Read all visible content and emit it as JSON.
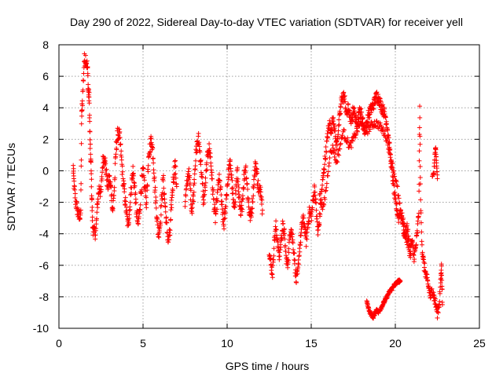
{
  "chart_data": {
    "type": "scatter",
    "title": "Day 290 of 2022, Sidereal Day-to-day VTEC variation (SDTVAR) for receiver yell",
    "xlabel": "GPS time / hours",
    "ylabel": "SDTVAR / TECUs",
    "xlim": [
      0,
      25
    ],
    "ylim": [
      -10,
      8
    ],
    "xticks": [
      0,
      5,
      10,
      15,
      20,
      25
    ],
    "yticks": [
      -10,
      -8,
      -6,
      -4,
      -2,
      0,
      2,
      4,
      6,
      8
    ],
    "grid": true,
    "marker": "+",
    "color": "#ff0000",
    "series": [
      {
        "name": "SDTVAR",
        "trace": [
          [
            0.85,
            0.2
          ],
          [
            0.9,
            -1.0
          ],
          [
            1.0,
            -2.0
          ],
          [
            1.1,
            -2.5
          ],
          [
            1.2,
            -3.0
          ],
          [
            1.3,
            -2.5
          ],
          [
            1.35,
            3.5
          ],
          [
            1.4,
            4.5
          ],
          [
            1.5,
            7.0
          ],
          [
            1.6,
            7.2
          ],
          [
            1.7,
            6.5
          ],
          [
            1.75,
            5.0
          ],
          [
            1.8,
            4.6
          ],
          [
            1.85,
            1.8
          ],
          [
            1.9,
            0.5
          ],
          [
            1.95,
            -1.5
          ],
          [
            2.0,
            -3.5
          ],
          [
            2.1,
            -4.0
          ],
          [
            2.2,
            -3.8
          ],
          [
            2.3,
            -2.0
          ],
          [
            2.4,
            -1.0
          ],
          [
            2.5,
            -1.5
          ],
          [
            2.6,
            0.5
          ],
          [
            2.7,
            1.0
          ],
          [
            2.8,
            0.0
          ],
          [
            2.9,
            -1.0
          ],
          [
            3.0,
            -0.5
          ],
          [
            3.1,
            -1.2
          ],
          [
            3.2,
            -2.5
          ],
          [
            3.3,
            -1.0
          ],
          [
            3.4,
            1.5
          ],
          [
            3.5,
            2.4
          ],
          [
            3.6,
            2.2
          ],
          [
            3.7,
            1.0
          ],
          [
            3.8,
            -0.5
          ],
          [
            3.9,
            -1.5
          ],
          [
            4.0,
            -2.5
          ],
          [
            4.1,
            -3.5
          ],
          [
            4.2,
            -2.5
          ],
          [
            4.3,
            -1.0
          ],
          [
            4.4,
            0.0
          ],
          [
            4.5,
            -1.0
          ],
          [
            4.6,
            -2.5
          ],
          [
            4.7,
            -3.5
          ],
          [
            4.8,
            -2.5
          ],
          [
            4.9,
            -1.0
          ],
          [
            5.0,
            0.0
          ],
          [
            5.1,
            -1.0
          ],
          [
            5.2,
            -2.0
          ],
          [
            5.3,
            0.0
          ],
          [
            5.4,
            1.5
          ],
          [
            5.5,
            2.0
          ],
          [
            5.6,
            1.0
          ],
          [
            5.7,
            -1.0
          ],
          [
            5.8,
            -2.5
          ],
          [
            5.9,
            -4.0
          ],
          [
            6.0,
            -3.5
          ],
          [
            6.1,
            -2.0
          ],
          [
            6.2,
            -0.5
          ],
          [
            6.3,
            -2.0
          ],
          [
            6.4,
            -3.5
          ],
          [
            6.5,
            -4.5
          ],
          [
            6.6,
            -4.0
          ],
          [
            6.7,
            -2.0
          ],
          [
            6.8,
            -0.5
          ],
          [
            6.9,
            0.5
          ],
          [
            7.0,
            -1.0
          ]
        ],
        "trace2": [
          [
            7.5,
            -2.0
          ],
          [
            7.6,
            -1.0
          ],
          [
            7.7,
            0.0
          ],
          [
            7.8,
            -1.0
          ],
          [
            7.9,
            -2.5
          ],
          [
            8.0,
            -1.5
          ],
          [
            8.1,
            0.5
          ],
          [
            8.2,
            1.5
          ],
          [
            8.3,
            2.0
          ],
          [
            8.4,
            1.0
          ],
          [
            8.5,
            -0.5
          ],
          [
            8.6,
            -2.0
          ],
          [
            8.7,
            -1.0
          ],
          [
            8.8,
            0.5
          ],
          [
            8.9,
            1.5
          ],
          [
            9.0,
            1.0
          ],
          [
            9.1,
            -0.5
          ],
          [
            9.2,
            -2.0
          ],
          [
            9.3,
            -3.0
          ],
          [
            9.4,
            -2.0
          ],
          [
            9.5,
            -0.5
          ],
          [
            9.6,
            -1.0
          ],
          [
            9.7,
            -2.5
          ],
          [
            9.8,
            -3.5
          ],
          [
            9.9,
            -2.5
          ],
          [
            10.0,
            -1.0
          ],
          [
            10.1,
            0.0
          ],
          [
            10.2,
            0.5
          ],
          [
            10.3,
            -1.0
          ],
          [
            10.4,
            -2.5
          ],
          [
            10.5,
            -1.5
          ],
          [
            10.6,
            0.0
          ],
          [
            10.7,
            -1.5
          ],
          [
            10.8,
            -3.0
          ],
          [
            10.9,
            -2.0
          ],
          [
            11.0,
            -0.5
          ],
          [
            11.1,
            0.3
          ],
          [
            11.2,
            -1.0
          ],
          [
            11.3,
            -2.5
          ],
          [
            11.4,
            -3.0
          ],
          [
            11.5,
            -2.0
          ],
          [
            11.6,
            -0.5
          ],
          [
            11.7,
            0.5
          ],
          [
            11.8,
            -0.5
          ],
          [
            11.9,
            -1.5
          ],
          [
            12.0,
            -1.0
          ],
          [
            12.1,
            -2.5
          ]
        ],
        "trace3": [
          [
            12.5,
            -5.0
          ],
          [
            12.6,
            -6.0
          ],
          [
            12.7,
            -6.5
          ],
          [
            12.8,
            -4.5
          ],
          [
            12.9,
            -3.5
          ],
          [
            13.0,
            -4.5
          ],
          [
            13.1,
            -5.5
          ],
          [
            13.2,
            -4.5
          ],
          [
            13.3,
            -3.5
          ],
          [
            13.4,
            -4.0
          ],
          [
            13.5,
            -5.5
          ],
          [
            13.6,
            -6.0
          ],
          [
            13.7,
            -4.5
          ],
          [
            13.8,
            -3.5
          ],
          [
            13.9,
            -4.5
          ],
          [
            14.0,
            -5.5
          ],
          [
            14.1,
            -7.0
          ],
          [
            14.2,
            -6.5
          ],
          [
            14.3,
            -5.0
          ],
          [
            14.4,
            -4.0
          ],
          [
            14.5,
            -3.0
          ],
          [
            14.6,
            -3.5
          ],
          [
            14.7,
            -4.5
          ],
          [
            14.8,
            -3.5
          ],
          [
            14.9,
            -2.5
          ],
          [
            15.0,
            -3.0
          ],
          [
            15.1,
            -2.0
          ],
          [
            15.2,
            -1.0
          ],
          [
            15.3,
            -2.5
          ],
          [
            15.4,
            -4.0
          ],
          [
            15.5,
            -3.0
          ],
          [
            15.6,
            -1.5
          ],
          [
            15.7,
            -0.5
          ],
          [
            15.8,
            0.5
          ],
          [
            15.9,
            1.5
          ],
          [
            16.0,
            2.5
          ],
          [
            16.1,
            3.0
          ],
          [
            16.2,
            2.5
          ],
          [
            16.3,
            3.5
          ],
          [
            16.4,
            2.5
          ],
          [
            16.5,
            1.5
          ],
          [
            16.6,
            2.5
          ],
          [
            16.7,
            3.5
          ],
          [
            16.8,
            4.5
          ],
          [
            16.9,
            4.8
          ],
          [
            17.0,
            4.5
          ],
          [
            17.1,
            3.5
          ],
          [
            17.2,
            4.0
          ],
          [
            17.3,
            3.5
          ],
          [
            17.4,
            3.0
          ],
          [
            17.5,
            4.0
          ],
          [
            17.6,
            3.5
          ],
          [
            17.7,
            3.0
          ],
          [
            17.8,
            3.5
          ],
          [
            17.9,
            3.8
          ],
          [
            18.0,
            3.5
          ],
          [
            18.1,
            3.0
          ],
          [
            18.2,
            2.5
          ],
          [
            18.3,
            3.0
          ],
          [
            18.4,
            3.5
          ],
          [
            18.5,
            3.8
          ],
          [
            18.6,
            4.0
          ],
          [
            18.7,
            4.2
          ],
          [
            18.8,
            4.5
          ],
          [
            18.9,
            4.8
          ],
          [
            19.0,
            4.6
          ],
          [
            19.1,
            4.3
          ],
          [
            19.2,
            4.0
          ],
          [
            19.3,
            3.8
          ],
          [
            19.4,
            3.5
          ],
          [
            19.5,
            3.0
          ],
          [
            19.6,
            2.0
          ],
          [
            19.7,
            1.0
          ],
          [
            19.8,
            0.0
          ],
          [
            19.9,
            -1.0
          ],
          [
            20.0,
            -2.0
          ],
          [
            20.1,
            -2.5
          ],
          [
            20.2,
            -3.0
          ],
          [
            20.3,
            -2.5
          ],
          [
            20.4,
            -3.0
          ],
          [
            20.5,
            -3.5
          ],
          [
            20.6,
            -4.0
          ],
          [
            20.7,
            -3.5
          ],
          [
            20.8,
            -4.5
          ],
          [
            20.9,
            -5.0
          ],
          [
            21.0,
            -4.5
          ],
          [
            21.1,
            -5.5
          ],
          [
            21.2,
            -5.0
          ],
          [
            21.3,
            -4.0
          ],
          [
            21.4,
            -2.5
          ],
          [
            21.45,
            4.0
          ],
          [
            21.5,
            -2.0
          ],
          [
            21.6,
            -5.0
          ],
          [
            21.7,
            -6.0
          ],
          [
            21.8,
            -6.5
          ],
          [
            21.9,
            -7.0
          ],
          [
            22.0,
            -7.5
          ],
          [
            22.1,
            -8.0
          ],
          [
            22.2,
            -7.5
          ],
          [
            22.3,
            -8.0
          ],
          [
            22.4,
            -8.5
          ],
          [
            22.5,
            -9.0
          ],
          [
            22.6,
            -8.5
          ],
          [
            22.7,
            -7.0
          ],
          [
            22.75,
            -6.0
          ],
          [
            22.8,
            -8.5
          ]
        ],
        "trace4": [
          [
            15.5,
            -1.5
          ],
          [
            15.7,
            -2.5
          ],
          [
            15.9,
            -1.0
          ],
          [
            16.1,
            1.0
          ],
          [
            16.3,
            1.5
          ],
          [
            16.5,
            0.5
          ],
          [
            16.7,
            1.5
          ],
          [
            16.9,
            2.5
          ],
          [
            17.1,
            2.0
          ],
          [
            17.3,
            1.5
          ],
          [
            17.5,
            2.0
          ],
          [
            17.7,
            2.5
          ],
          [
            17.9,
            3.0
          ],
          [
            18.1,
            2.8
          ],
          [
            18.3,
            2.5
          ],
          [
            18.5,
            2.8
          ],
          [
            18.7,
            3.0
          ],
          [
            18.9,
            3.0
          ],
          [
            19.1,
            2.8
          ],
          [
            19.3,
            2.5
          ],
          [
            19.5,
            2.0
          ],
          [
            19.7,
            1.0
          ],
          [
            19.9,
            0.0
          ],
          [
            20.1,
            -1.0
          ],
          [
            20.3,
            -2.5
          ],
          [
            20.5,
            -4.0
          ],
          [
            20.7,
            -4.5
          ],
          [
            20.9,
            -5.5
          ]
        ],
        "trace5": [
          [
            18.3,
            -8.3
          ],
          [
            18.4,
            -8.7
          ],
          [
            18.5,
            -9.0
          ],
          [
            18.6,
            -9.2
          ],
          [
            18.7,
            -9.3
          ],
          [
            18.8,
            -9.0
          ],
          [
            18.9,
            -8.8
          ],
          [
            19.0,
            -9.0
          ],
          [
            19.1,
            -8.8
          ],
          [
            19.2,
            -8.6
          ],
          [
            19.3,
            -8.4
          ],
          [
            19.4,
            -8.2
          ],
          [
            19.5,
            -8.0
          ],
          [
            19.6,
            -7.8
          ],
          [
            19.7,
            -7.6
          ],
          [
            19.8,
            -7.5
          ],
          [
            19.9,
            -7.3
          ],
          [
            20.0,
            -7.2
          ],
          [
            20.1,
            -7.1
          ],
          [
            20.2,
            -7.0
          ],
          [
            20.3,
            -7.0
          ]
        ],
        "trace6": [
          [
            22.2,
            -0.5
          ],
          [
            22.3,
            0.0
          ],
          [
            22.35,
            1.0
          ],
          [
            22.4,
            1.5
          ],
          [
            22.45,
            0.5
          ],
          [
            22.5,
            -0.5
          ]
        ]
      }
    ]
  }
}
